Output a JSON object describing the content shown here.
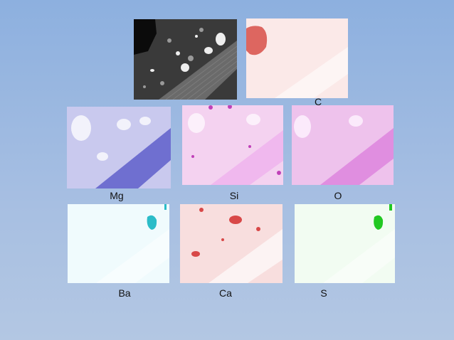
{
  "maps": [
    {
      "label": "C"
    },
    {
      "label": "Mg"
    },
    {
      "label": "Si"
    },
    {
      "label": "O"
    },
    {
      "label": "Ba"
    },
    {
      "label": "Ca"
    },
    {
      "label": "S"
    }
  ]
}
